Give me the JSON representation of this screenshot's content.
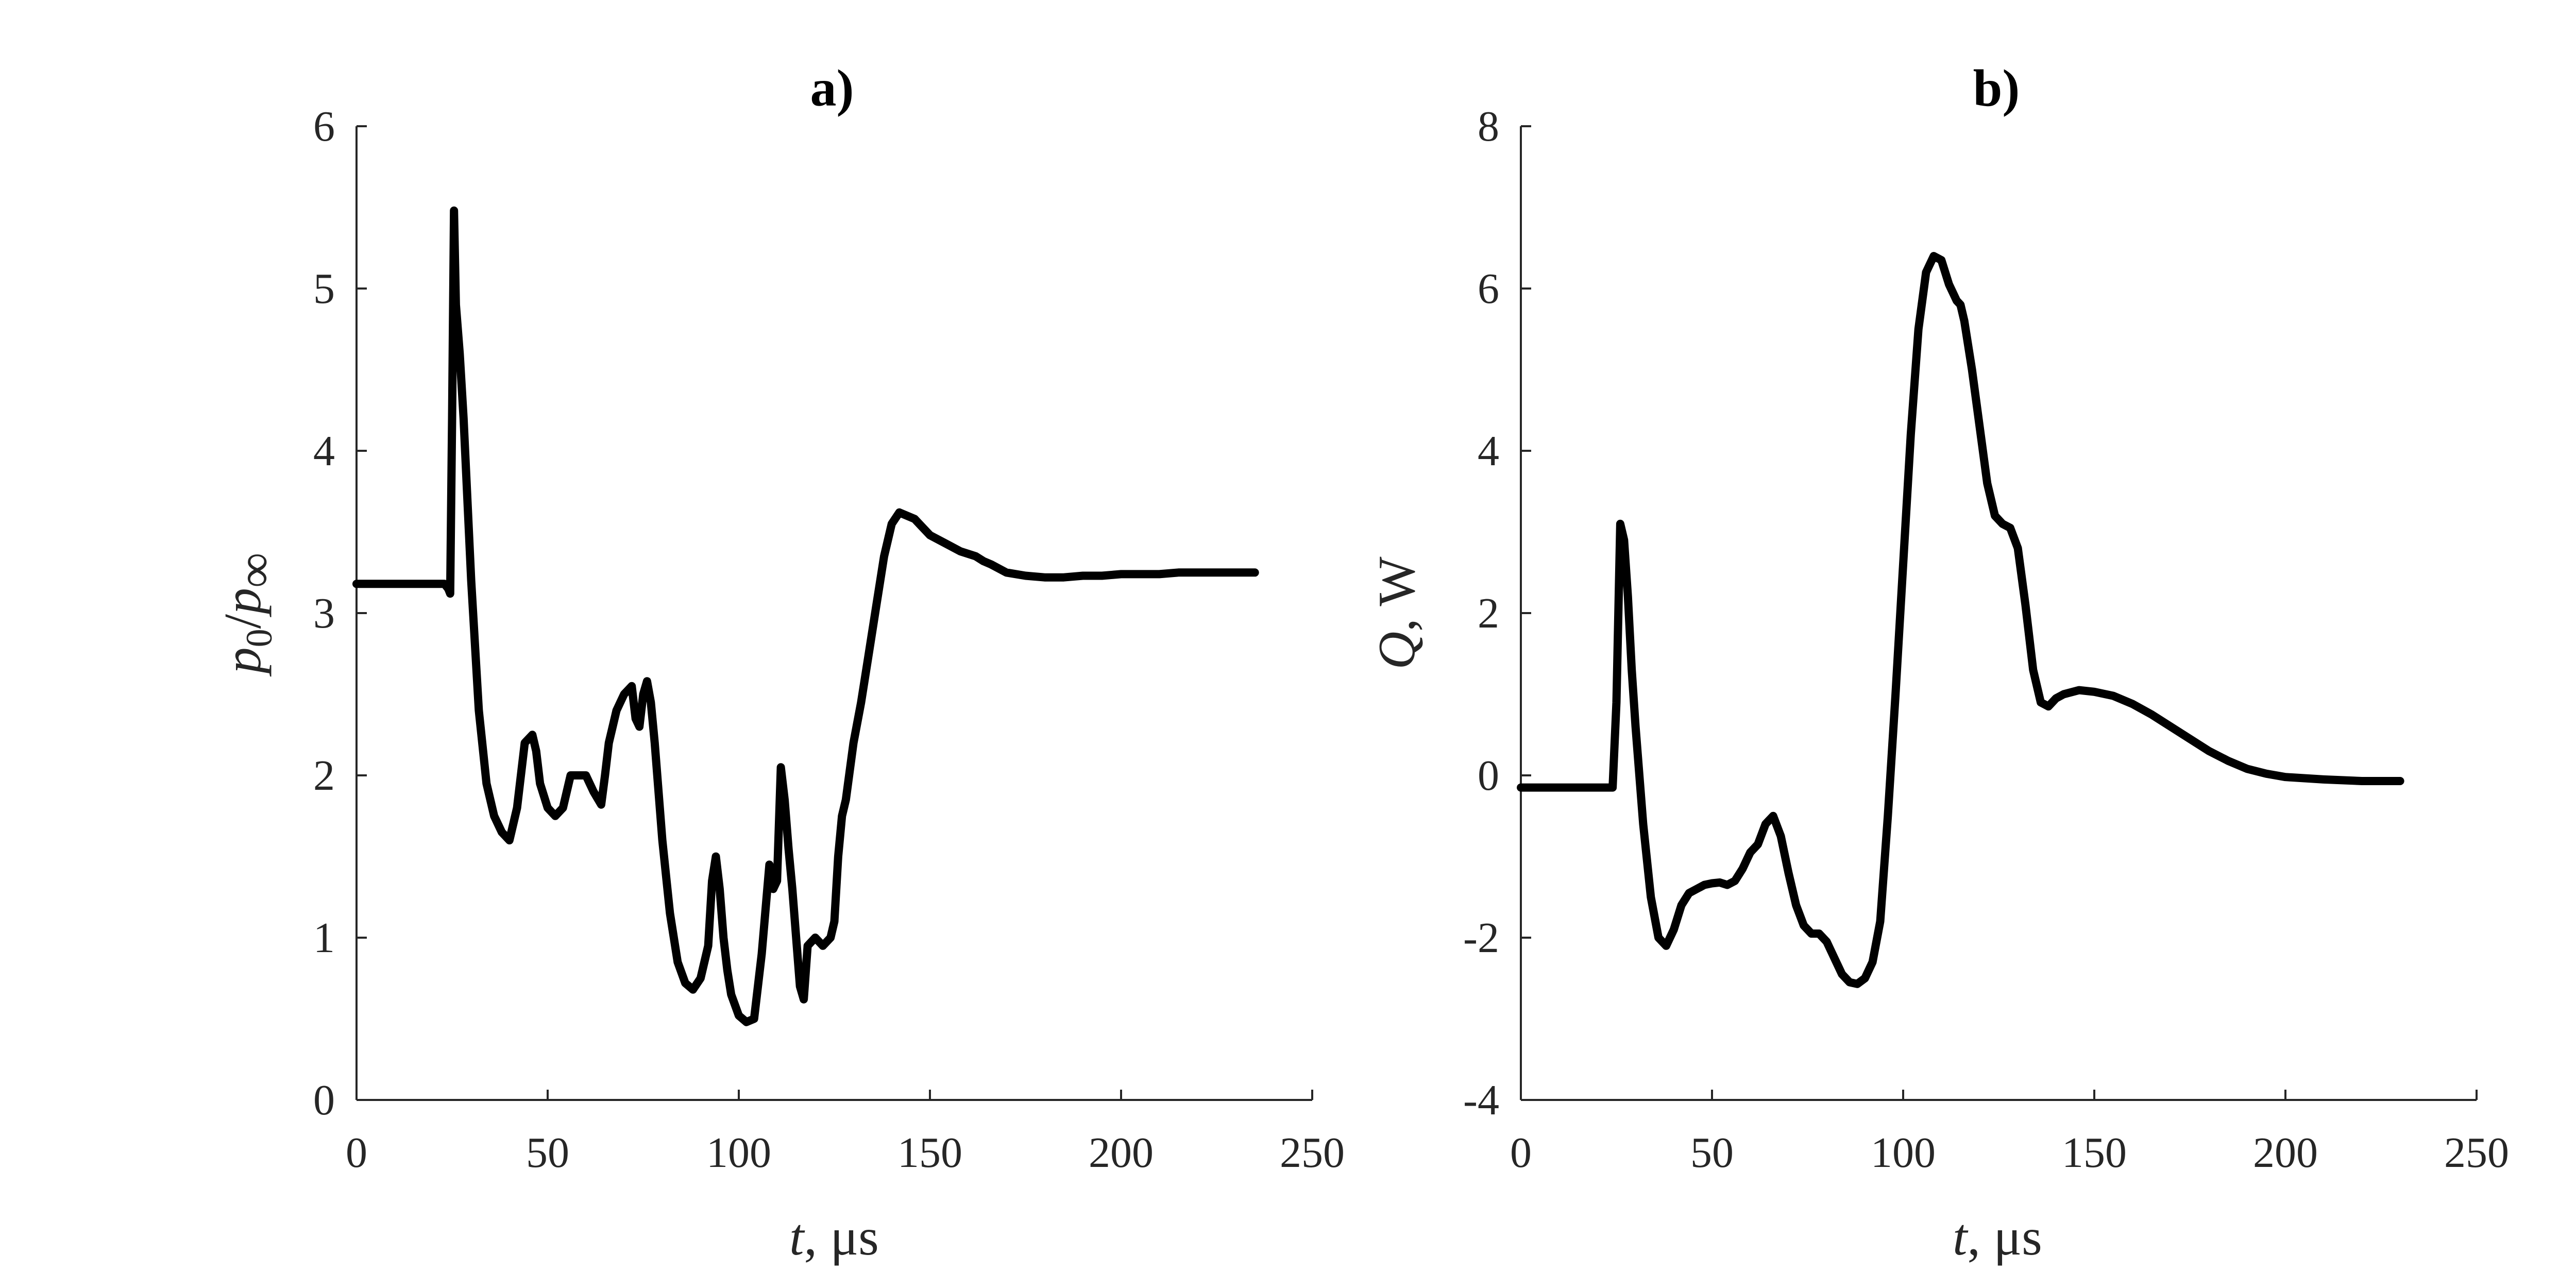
{
  "chart_data": [
    {
      "type": "line",
      "title": "a)",
      "xlabel": {
        "var": "t",
        "rest": ", μs"
      },
      "ylabel": {
        "p": "p",
        "sub0": "0",
        "slash": "/",
        "p2": "p",
        "subinf": "∞"
      },
      "xlim": [
        0,
        250
      ],
      "ylim": [
        0,
        6
      ],
      "xticks": [
        "0",
        "50",
        "100",
        "150",
        "200",
        "250"
      ],
      "yticks": [
        "0",
        "1",
        "2",
        "3",
        "4",
        "5",
        "6"
      ],
      "grid": false,
      "series": [
        {
          "color": "#000000",
          "x": [
            0,
            10,
            20,
            23,
            24,
            24.5,
            25,
            25.5,
            26,
            27,
            28,
            30,
            32,
            34,
            36,
            38,
            40,
            42,
            44,
            46,
            47,
            48,
            50,
            52,
            54,
            56,
            58,
            60,
            62,
            64,
            65,
            66,
            68,
            70,
            72,
            73,
            74,
            75,
            76,
            77,
            78,
            80,
            82,
            84,
            86,
            88,
            90,
            92,
            93,
            94,
            95,
            96,
            97,
            98,
            100,
            102,
            104,
            106,
            108,
            109,
            110,
            111,
            112,
            113,
            114,
            115,
            116,
            117,
            118,
            120,
            122,
            124,
            125,
            126,
            127,
            128,
            130,
            132,
            134,
            136,
            138,
            140,
            142,
            146,
            150,
            154,
            158,
            162,
            164,
            166,
            170,
            175,
            180,
            185,
            190,
            195,
            200,
            205,
            210,
            215,
            220,
            225,
            230,
            235
          ],
          "y": [
            3.18,
            3.18,
            3.18,
            3.18,
            3.15,
            3.12,
            4.2,
            5.48,
            4.9,
            4.6,
            4.2,
            3.2,
            2.4,
            1.95,
            1.75,
            1.65,
            1.6,
            1.8,
            2.2,
            2.25,
            2.15,
            1.95,
            1.8,
            1.75,
            1.8,
            2.0,
            2.0,
            2.0,
            1.9,
            1.82,
            2.0,
            2.2,
            2.4,
            2.5,
            2.55,
            2.35,
            2.3,
            2.5,
            2.58,
            2.45,
            2.2,
            1.6,
            1.15,
            0.85,
            0.72,
            0.68,
            0.75,
            0.95,
            1.35,
            1.5,
            1.3,
            1.0,
            0.8,
            0.65,
            0.52,
            0.48,
            0.5,
            0.9,
            1.45,
            1.3,
            1.35,
            2.05,
            1.85,
            1.55,
            1.3,
            1.0,
            0.7,
            0.62,
            0.95,
            1.0,
            0.95,
            1.0,
            1.1,
            1.5,
            1.75,
            1.85,
            2.2,
            2.45,
            2.75,
            3.05,
            3.35,
            3.55,
            3.62,
            3.58,
            3.48,
            3.43,
            3.38,
            3.35,
            3.32,
            3.3,
            3.25,
            3.23,
            3.22,
            3.22,
            3.23,
            3.23,
            3.24,
            3.24,
            3.24,
            3.25,
            3.25,
            3.25,
            3.25,
            3.25
          ]
        }
      ]
    },
    {
      "type": "line",
      "title": "b)",
      "xlabel": {
        "var": "t",
        "rest": ", μs"
      },
      "ylabel": {
        "var": "Q",
        "rest": ", W"
      },
      "xlim": [
        0,
        250
      ],
      "ylim": [
        -4,
        8
      ],
      "xticks": [
        "0",
        "50",
        "100",
        "150",
        "200",
        "250"
      ],
      "yticks": [
        "-4",
        "-2",
        "0",
        "2",
        "4",
        "6",
        "8"
      ],
      "grid": false,
      "series": [
        {
          "color": "#000000",
          "x": [
            0,
            10,
            20,
            24,
            25,
            26,
            27,
            28,
            29,
            30,
            32,
            34,
            36,
            38,
            40,
            42,
            44,
            46,
            48,
            50,
            52,
            54,
            56,
            58,
            60,
            62,
            64,
            66,
            68,
            70,
            72,
            74,
            76,
            78,
            80,
            82,
            84,
            86,
            88,
            90,
            92,
            94,
            96,
            98,
            100,
            102,
            104,
            106,
            108,
            110,
            112,
            113,
            114,
            115,
            116,
            118,
            120,
            122,
            124,
            126,
            128,
            130,
            132,
            134,
            136,
            138,
            140,
            142,
            146,
            150,
            155,
            160,
            165,
            170,
            175,
            180,
            185,
            190,
            195,
            200,
            210,
            220,
            230
          ],
          "y": [
            -0.15,
            -0.15,
            -0.15,
            -0.15,
            0.9,
            3.1,
            2.9,
            2.2,
            1.3,
            0.6,
            -0.6,
            -1.5,
            -2.0,
            -2.1,
            -1.9,
            -1.6,
            -1.45,
            -1.4,
            -1.35,
            -1.33,
            -1.32,
            -1.35,
            -1.3,
            -1.15,
            -0.95,
            -0.85,
            -0.6,
            -0.5,
            -0.75,
            -1.2,
            -1.6,
            -1.85,
            -1.95,
            -1.95,
            -2.05,
            -2.25,
            -2.45,
            -2.55,
            -2.57,
            -2.5,
            -2.3,
            -1.8,
            -0.5,
            1.0,
            2.6,
            4.2,
            5.5,
            6.2,
            6.4,
            6.35,
            6.05,
            5.95,
            5.85,
            5.8,
            5.6,
            5.0,
            4.3,
            3.6,
            3.2,
            3.1,
            3.05,
            2.8,
            2.1,
            1.3,
            0.9,
            0.85,
            0.95,
            1.0,
            1.05,
            1.03,
            0.98,
            0.88,
            0.75,
            0.6,
            0.45,
            0.3,
            0.18,
            0.08,
            0.02,
            -0.02,
            -0.05,
            -0.07,
            -0.07
          ]
        }
      ]
    }
  ]
}
